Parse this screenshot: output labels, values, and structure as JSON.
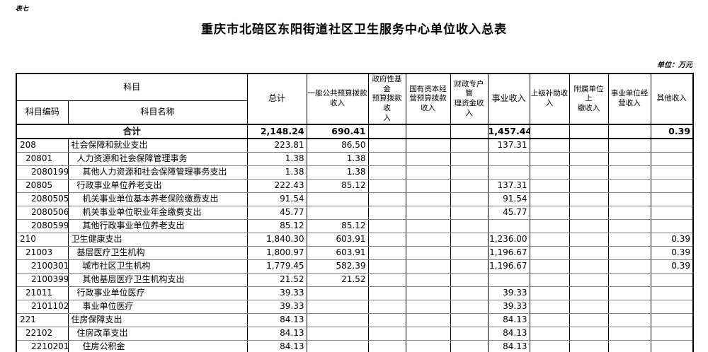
{
  "page": {
    "table_label": "表七",
    "title": "重庆市北碚区东阳街道社区卫生服务中心单位收入总表",
    "unit_note": "单位：万元"
  },
  "table": {
    "header": {
      "subject_group": "科目",
      "subject_code": "科目编码",
      "subject_name": "科目名称",
      "columns": [
        "总计",
        "一般公共预算拨款\n收入",
        "政府性基金\n预算拨款收\n入",
        "国有资本经\n营预算拨款\n收入",
        "财政专户管\n理资金收入",
        "事业收入",
        "上级补助收\n入",
        "附属单位上\n缴收入",
        "事业单位经\n营收入",
        "其他收入"
      ]
    },
    "total_row": {
      "label": "合计",
      "values": [
        "2,148.24",
        "690.41",
        "",
        "",
        "",
        "1,457.44",
        "",
        "",
        "",
        "0.39"
      ]
    },
    "rows": [
      {
        "code": "208",
        "indent": 0,
        "name": "社会保障和就业支出",
        "values": [
          "223.81",
          "86.50",
          "",
          "",
          "",
          "137.31",
          "",
          "",
          "",
          ""
        ]
      },
      {
        "code": "20801",
        "indent": 1,
        "name": "人力资源和社会保障管理事务",
        "values": [
          "1.38",
          "1.38",
          "",
          "",
          "",
          "",
          "",
          "",
          "",
          ""
        ]
      },
      {
        "code": "2080199",
        "indent": 2,
        "name": "其他人力资源和社会保障管理事务支出",
        "values": [
          "1.38",
          "1.38",
          "",
          "",
          "",
          "",
          "",
          "",
          "",
          ""
        ]
      },
      {
        "code": "20805",
        "indent": 1,
        "name": "行政事业单位养老支出",
        "values": [
          "222.43",
          "85.12",
          "",
          "",
          "",
          "137.31",
          "",
          "",
          "",
          ""
        ]
      },
      {
        "code": "2080505",
        "indent": 2,
        "name": "机关事业单位基本养老保险缴费支出",
        "values": [
          "91.54",
          "",
          "",
          "",
          "",
          "91.54",
          "",
          "",
          "",
          ""
        ]
      },
      {
        "code": "2080506",
        "indent": 2,
        "name": "机关事业单位职业年金缴费支出",
        "values": [
          "45.77",
          "",
          "",
          "",
          "",
          "45.77",
          "",
          "",
          "",
          ""
        ]
      },
      {
        "code": "2080599",
        "indent": 2,
        "name": "其他行政事业单位养老支出",
        "values": [
          "85.12",
          "85.12",
          "",
          "",
          "",
          "",
          "",
          "",
          "",
          ""
        ]
      },
      {
        "code": "210",
        "indent": 0,
        "name": "卫生健康支出",
        "values": [
          "1,840.30",
          "603.91",
          "",
          "",
          "",
          "1,236.00",
          "",
          "",
          "",
          "0.39"
        ]
      },
      {
        "code": "21003",
        "indent": 1,
        "name": "基层医疗卫生机构",
        "values": [
          "1,800.97",
          "603.91",
          "",
          "",
          "",
          "1,196.67",
          "",
          "",
          "",
          "0.39"
        ]
      },
      {
        "code": "2100301",
        "indent": 2,
        "name": "城市社区卫生机构",
        "values": [
          "1,779.45",
          "582.39",
          "",
          "",
          "",
          "1,196.67",
          "",
          "",
          "",
          "0.39"
        ]
      },
      {
        "code": "2100399",
        "indent": 2,
        "name": "其他基层医疗卫生机构支出",
        "values": [
          "21.52",
          "21.52",
          "",
          "",
          "",
          "",
          "",
          "",
          "",
          ""
        ]
      },
      {
        "code": "21011",
        "indent": 1,
        "name": "行政事业单位医疗",
        "values": [
          "39.33",
          "",
          "",
          "",
          "",
          "39.33",
          "",
          "",
          "",
          ""
        ]
      },
      {
        "code": "2101102",
        "indent": 2,
        "name": "事业单位医疗",
        "values": [
          "39.33",
          "",
          "",
          "",
          "",
          "39.33",
          "",
          "",
          "",
          ""
        ]
      },
      {
        "code": "221",
        "indent": 0,
        "name": "住房保障支出",
        "values": [
          "84.13",
          "",
          "",
          "",
          "",
          "84.13",
          "",
          "",
          "",
          ""
        ]
      },
      {
        "code": "22102",
        "indent": 1,
        "name": "住房改革支出",
        "values": [
          "84.13",
          "",
          "",
          "",
          "",
          "84.13",
          "",
          "",
          "",
          ""
        ]
      },
      {
        "code": "2210201",
        "indent": 2,
        "name": "住房公积金",
        "values": [
          "84.13",
          "",
          "",
          "",
          "",
          "84.13",
          "",
          "",
          "",
          ""
        ]
      }
    ]
  }
}
